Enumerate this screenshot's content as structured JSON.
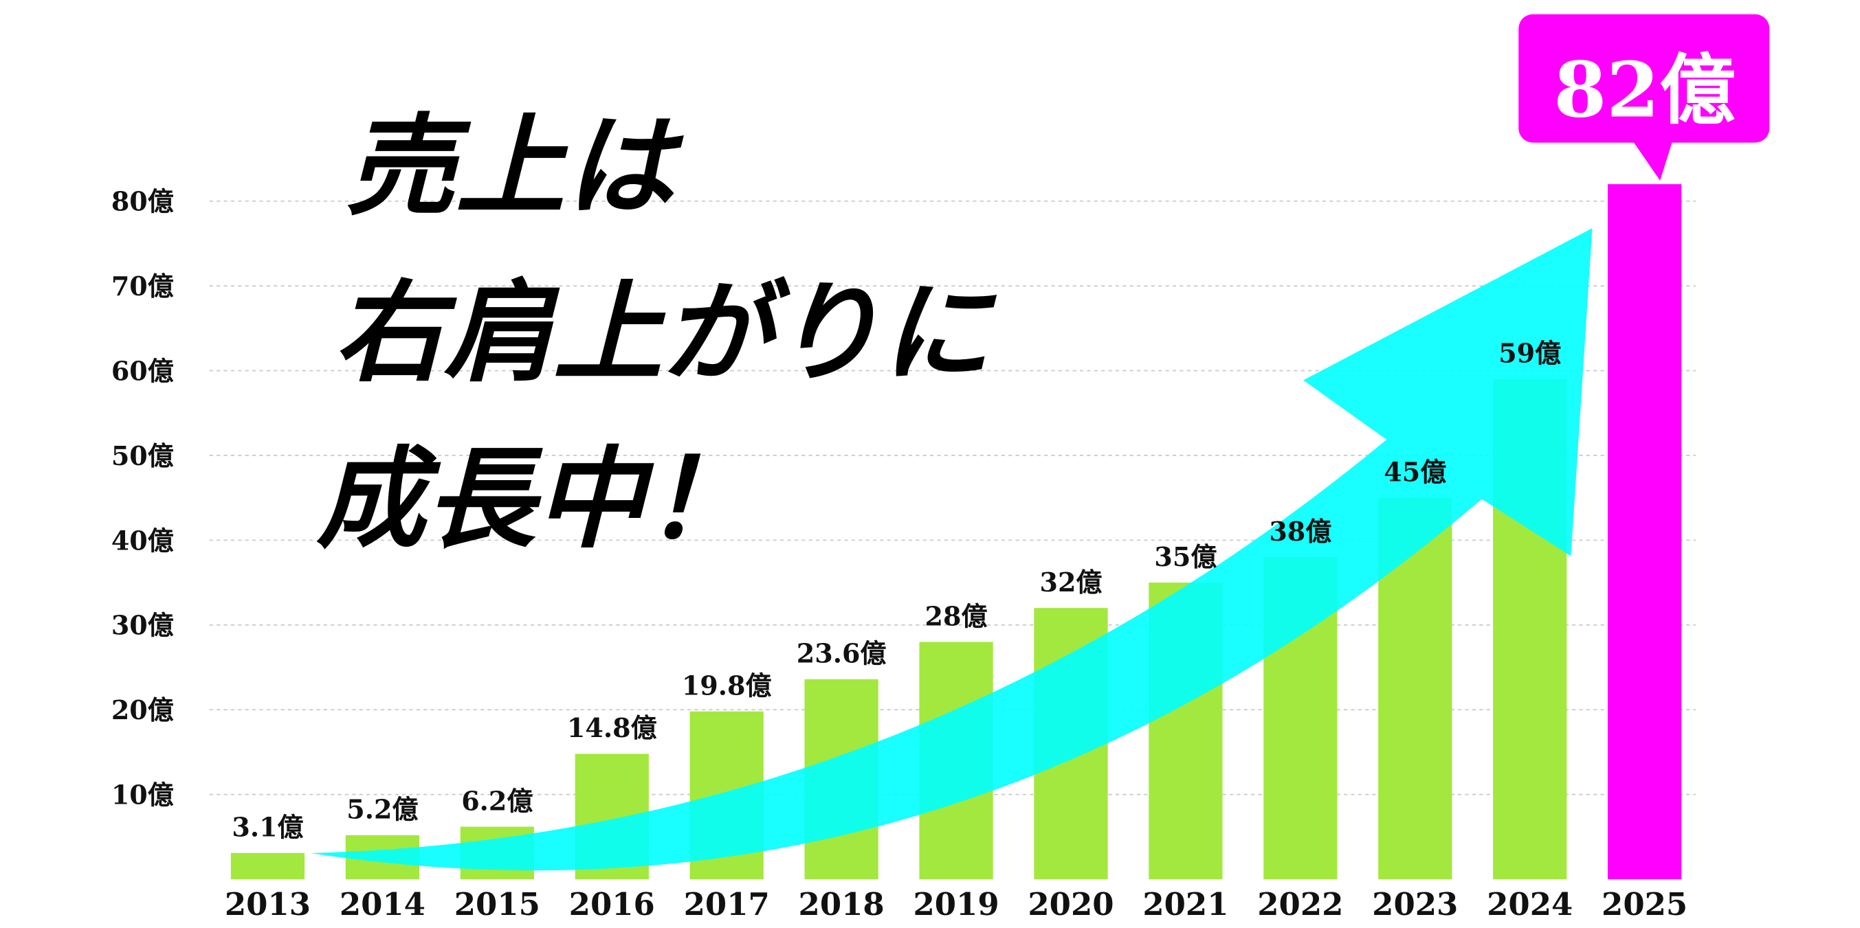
{
  "chart_data": {
    "type": "bar",
    "title_lines": [
      "売上は",
      "右肩上がりに",
      "成長中！"
    ],
    "categories": [
      "2013",
      "2014",
      "2015",
      "2016",
      "2017",
      "2018",
      "2019",
      "2020",
      "2021",
      "2022",
      "2023",
      "2024",
      "2025"
    ],
    "values": [
      3.1,
      5.2,
      6.2,
      14.8,
      19.8,
      23.6,
      28,
      32,
      35,
      38,
      45,
      59,
      82
    ],
    "value_labels": [
      "3.1億",
      "5.2億",
      "6.2億",
      "14.8億",
      "19.8億",
      "23.6億",
      "28億",
      "32億",
      "35億",
      "38億",
      "45億",
      "59億",
      "82億"
    ],
    "colors": [
      "#a3e83e",
      "#a3e83e",
      "#a3e83e",
      "#a3e83e",
      "#a3e83e",
      "#a3e83e",
      "#a3e83e",
      "#a3e83e",
      "#a3e83e",
      "#a3e83e",
      "#a3e83e",
      "#a3e83e",
      "#ff00ff"
    ],
    "ylim": [
      0,
      82
    ],
    "yticks": [
      {
        "value": 10,
        "label": "10億"
      },
      {
        "value": 20,
        "label": "20億"
      },
      {
        "value": 30,
        "label": "30億"
      },
      {
        "value": 40,
        "label": "40億"
      },
      {
        "value": 50,
        "label": "50億"
      },
      {
        "value": 60,
        "label": "60億"
      },
      {
        "value": 70,
        "label": "70億"
      },
      {
        "value": 80,
        "label": "80億"
      }
    ],
    "grid": true
  }
}
